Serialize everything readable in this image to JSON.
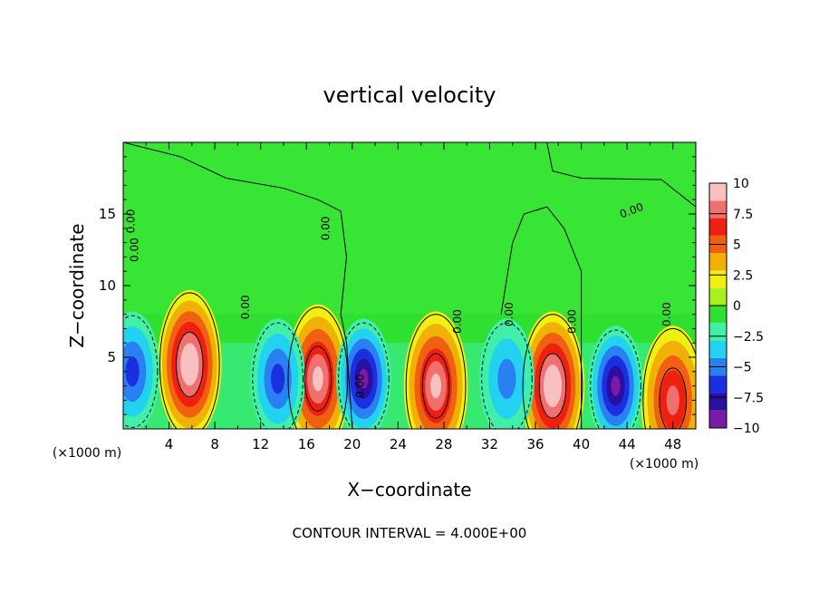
{
  "chart_data": {
    "type": "heatmap",
    "title": "vertical velocity",
    "xlabel": "X−coordinate",
    "ylabel": "Z−coordinate",
    "x_unit_left": "(×1000 m)",
    "x_unit_right": "(×1000 m)",
    "xlim": [
      0,
      50
    ],
    "ylim": [
      0,
      20
    ],
    "x_ticks": [
      {
        "value": 4,
        "label": "4"
      },
      {
        "value": 8,
        "label": "8"
      },
      {
        "value": 12,
        "label": "12"
      },
      {
        "value": 16,
        "label": "16"
      },
      {
        "value": 20,
        "label": "20"
      },
      {
        "value": 24,
        "label": "24"
      },
      {
        "value": 28,
        "label": "28"
      },
      {
        "value": 32,
        "label": "32"
      },
      {
        "value": 36,
        "label": "36"
      },
      {
        "value": 40,
        "label": "40"
      },
      {
        "value": 44,
        "label": "44"
      },
      {
        "value": 48,
        "label": "48"
      }
    ],
    "y_ticks": [
      {
        "value": 5,
        "label": "5"
      },
      {
        "value": 10,
        "label": "10"
      },
      {
        "value": 15,
        "label": "15"
      }
    ],
    "colorbar": {
      "range": [
        -10,
        10
      ],
      "ticks": [
        {
          "value": 10,
          "label": "10"
        },
        {
          "value": 7.5,
          "label": "7.5"
        },
        {
          "value": 5,
          "label": "5"
        },
        {
          "value": 2.5,
          "label": "2.5"
        },
        {
          "value": 0,
          "label": "0"
        },
        {
          "value": -2.5,
          "label": "−2.5"
        },
        {
          "value": -5,
          "label": "−5"
        },
        {
          "value": -7.5,
          "label": "−7.5"
        },
        {
          "value": -10,
          "label": "−10"
        }
      ],
      "colors": [
        "#7a1aa8",
        "#2a10a0",
        "#1a30e0",
        "#2a80f0",
        "#22d2f0",
        "#40f0a8",
        "#30e030",
        "#a8f020",
        "#f0f010",
        "#f0b008",
        "#f06010",
        "#f02010",
        "#f07070",
        "#f8c0c0"
      ]
    },
    "contour_interval_label": "CONTOUR INTERVAL = 4.000E+00",
    "contour_labels": [
      "0.00",
      "0.00",
      "0.00",
      "0.00",
      "0.00",
      "0.00",
      "0.00",
      "0.00",
      "0.00",
      "0.00"
    ],
    "features": [
      {
        "kind": "updraft",
        "x": 5.8,
        "z": 4.5,
        "peak": 10
      },
      {
        "kind": "updraft",
        "x": 17.0,
        "z": 3.5,
        "peak": 8
      },
      {
        "kind": "updraft",
        "x": 27.3,
        "z": 3.0,
        "peak": 9
      },
      {
        "kind": "updraft",
        "x": 37.5,
        "z": 3.0,
        "peak": 10
      },
      {
        "kind": "updraft",
        "x": 48.0,
        "z": 2.0,
        "peak": 7
      },
      {
        "kind": "downdraft",
        "x": 13.5,
        "z": 3.5,
        "peak": -6
      },
      {
        "kind": "downdraft",
        "x": 21.0,
        "z": 3.5,
        "peak": -9
      },
      {
        "kind": "downdraft",
        "x": 33.5,
        "z": 3.5,
        "peak": -5
      },
      {
        "kind": "downdraft",
        "x": 43.0,
        "z": 3.0,
        "peak": -8
      },
      {
        "kind": "downdraft",
        "x": 0.8,
        "z": 4.0,
        "peak": -6
      }
    ]
  }
}
